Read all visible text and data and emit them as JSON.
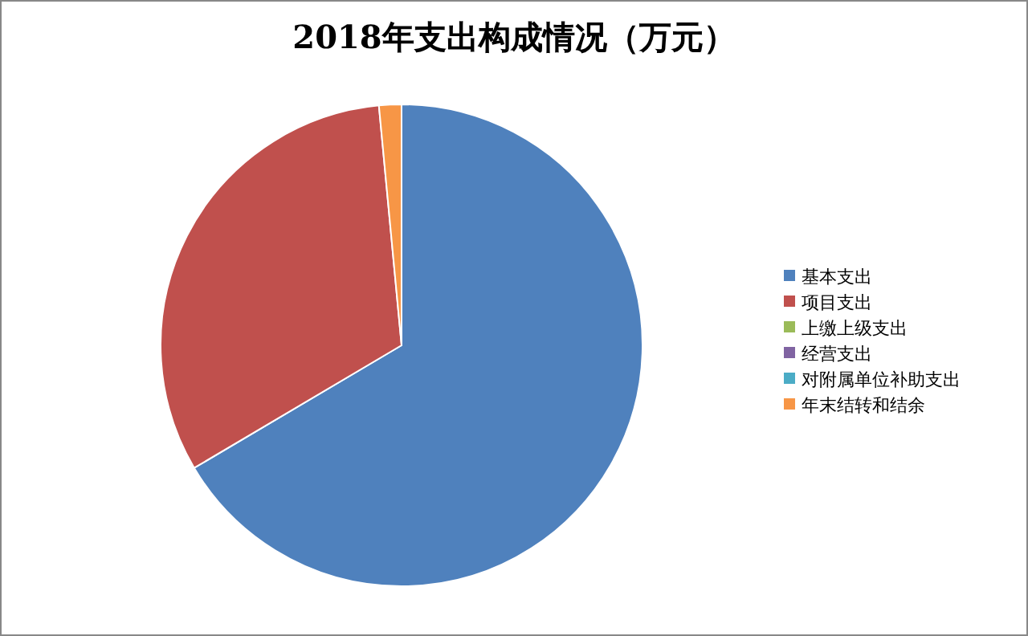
{
  "chart_data": {
    "type": "pie",
    "title": "2018年支出构成情况（万元）",
    "categories": [
      "基本支出",
      "项目支出",
      "上缴上级支出",
      "经营支出",
      "对附属单位补助支出",
      "年末结转和结余"
    ],
    "values": [
      66.5,
      32,
      0,
      0,
      0,
      1.5
    ],
    "colors": [
      "#4f81bd",
      "#c0504d",
      "#9bbb59",
      "#8064a2",
      "#4bacc6",
      "#f79646"
    ],
    "legend": "right"
  }
}
